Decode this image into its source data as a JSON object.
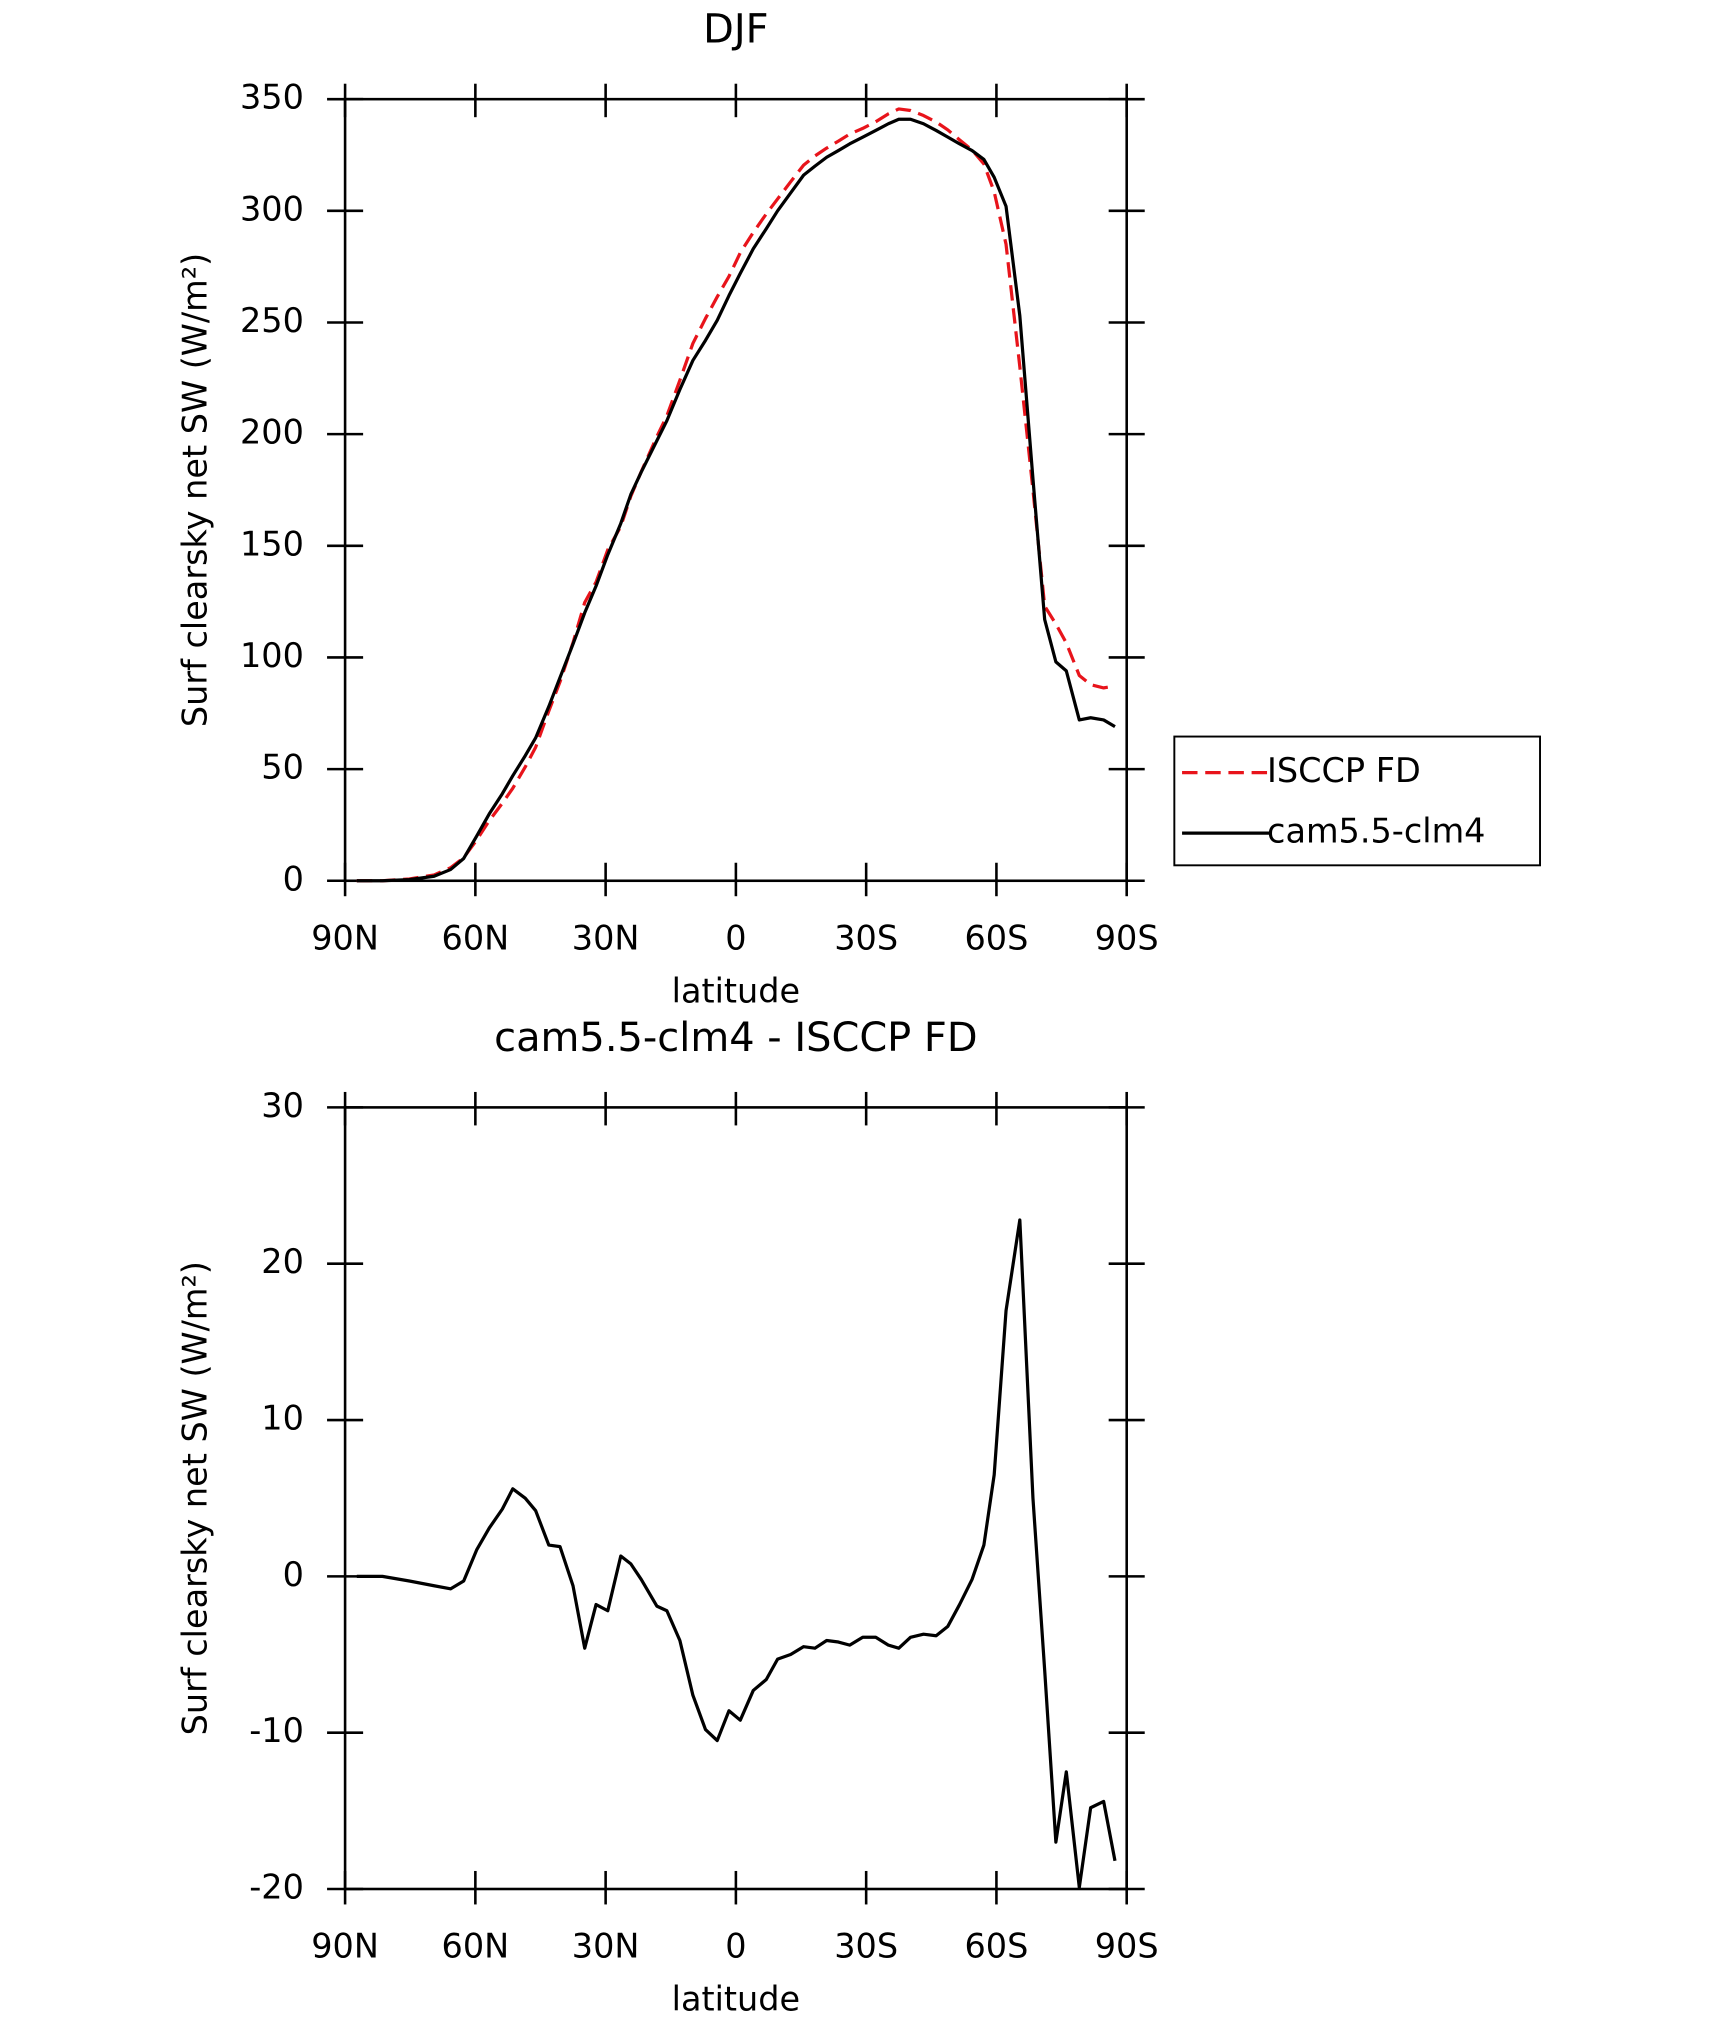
{
  "chart_data": [
    {
      "type": "line",
      "title": "DJF",
      "xlabel": "latitude",
      "ylabel": "Surf clearsky net SW (W/m²)",
      "x": [
        87.3,
        81.4,
        75.2,
        69.5,
        65.7,
        62.7,
        59.7,
        56.8,
        53.8,
        51.4,
        48.5,
        46.1,
        43.1,
        40.5,
        37.5,
        34.8,
        32.2,
        29.5,
        26.5,
        24.2,
        21.8,
        18.2,
        15.9,
        12.9,
        9.9,
        7.0,
        4.3,
        1.6,
        -1.0,
        -4.0,
        -7.0,
        -9.6,
        -12.6,
        -15.6,
        -18.2,
        -20.9,
        -23.6,
        -26.2,
        -29.2,
        -32.2,
        -35.1,
        -37.5,
        -40.2,
        -43.2,
        -46.1,
        -48.8,
        -51.5,
        -54.4,
        -57.1,
        -59.5,
        -62.2,
        -65.4,
        -68.4,
        -71.1,
        -73.7,
        -76.1,
        -79.1,
        -81.7,
        -84.7,
        -87.3
      ],
      "series": [
        {
          "name": "ISCCP FD",
          "color": "#e8141b",
          "dash": true,
          "values": [
            0,
            0,
            0.8,
            2.6,
            5.8,
            10.3,
            18.3,
            26.9,
            34.7,
            41.4,
            51,
            59.8,
            76,
            89.1,
            106.6,
            124.6,
            133.8,
            148.2,
            158.7,
            172.2,
            183.2,
            198.9,
            208.2,
            224.1,
            240.6,
            251.8,
            261.5,
            270.6,
            281.2,
            290.3,
            298.6,
            305.3,
            313,
            320.5,
            324.6,
            328.1,
            331.2,
            334.4,
            336.9,
            339.9,
            343.4,
            345.6,
            344.9,
            342.7,
            339.8,
            336.2,
            331.8,
            327.2,
            321,
            308.5,
            285,
            230.2,
            175,
            123,
            115,
            106.5,
            91.9,
            87.8,
            86.4,
            87.2
          ]
        },
        {
          "name": "cam5.5-clm4",
          "color": "#000000",
          "dash": false,
          "values": [
            0,
            0,
            0.5,
            2,
            5,
            10,
            20,
            30,
            39,
            47,
            56,
            64,
            78,
            91,
            106,
            120,
            132,
            146,
            160,
            173,
            183,
            197,
            206,
            220,
            233,
            242,
            251,
            262,
            272,
            283,
            292,
            300,
            308,
            316,
            320,
            324,
            327,
            330,
            333,
            336,
            339,
            341,
            341,
            339,
            336,
            333,
            330,
            327,
            323,
            315,
            302,
            253,
            180,
            117,
            98,
            94,
            72,
            73,
            72,
            69
          ]
        }
      ],
      "xlim": [
        90,
        -90
      ],
      "xticks": [
        {
          "value": 90,
          "label": "90N"
        },
        {
          "value": 60,
          "label": "60N"
        },
        {
          "value": 30,
          "label": "30N"
        },
        0,
        {
          "value": -30,
          "label": "30S"
        },
        {
          "value": -60,
          "label": "60S"
        },
        {
          "value": -90,
          "label": "90S"
        }
      ],
      "ylim": [
        0,
        350
      ],
      "yticks": [
        0,
        50,
        100,
        150,
        200,
        250,
        300,
        350
      ],
      "legend": "outside-right"
    },
    {
      "type": "line",
      "title": "cam5.5-clm4 - ISCCP FD",
      "xlabel": "latitude",
      "ylabel": "Surf clearsky net SW (W/m²)",
      "x": [
        87.3,
        81.4,
        75.2,
        69.5,
        65.7,
        62.7,
        59.7,
        56.8,
        53.8,
        51.4,
        48.5,
        46.1,
        43.1,
        40.5,
        37.5,
        34.8,
        32.2,
        29.5,
        26.5,
        24.2,
        21.8,
        18.2,
        15.9,
        12.9,
        9.9,
        7.0,
        4.3,
        1.6,
        -1.0,
        -4.0,
        -7.0,
        -9.6,
        -12.6,
        -15.6,
        -18.2,
        -20.9,
        -23.6,
        -26.2,
        -29.2,
        -32.2,
        -35.1,
        -37.5,
        -40.2,
        -43.2,
        -46.1,
        -48.8,
        -51.5,
        -54.4,
        -57.1,
        -59.5,
        -62.2,
        -65.4,
        -68.4,
        -71.1,
        -73.7,
        -76.1,
        -79.1,
        -81.7,
        -84.7,
        -87.3
      ],
      "series": [
        {
          "color": "#000000",
          "dash": false,
          "values": [
            0,
            0,
            -0.3,
            -0.6,
            -0.8,
            -0.3,
            1.7,
            3.1,
            4.3,
            5.6,
            5.0,
            4.2,
            2.0,
            1.9,
            -0.6,
            -4.6,
            -1.8,
            -2.2,
            1.3,
            0.8,
            -0.2,
            -1.9,
            -2.2,
            -4.1,
            -7.6,
            -9.8,
            -10.5,
            -8.6,
            -9.2,
            -7.3,
            -6.6,
            -5.3,
            -5.0,
            -4.5,
            -4.6,
            -4.1,
            -4.2,
            -4.4,
            -3.9,
            -3.9,
            -4.4,
            -4.6,
            -3.9,
            -3.7,
            -3.8,
            -3.2,
            -1.8,
            -0.2,
            2.0,
            6.5,
            17.0,
            22.8,
            5.0,
            -6.0,
            -17.0,
            -12.5,
            -19.9,
            -14.8,
            -14.4,
            -18.2
          ]
        }
      ],
      "xlim": [
        90,
        -90
      ],
      "xticks": [
        {
          "value": 90,
          "label": "90N"
        },
        {
          "value": 60,
          "label": "60N"
        },
        {
          "value": 30,
          "label": "30N"
        },
        0,
        {
          "value": -30,
          "label": "30S"
        },
        {
          "value": -60,
          "label": "60S"
        },
        {
          "value": -90,
          "label": "90S"
        }
      ],
      "ylim": [
        -20,
        30
      ],
      "yticks": [
        -20,
        -10,
        0,
        10,
        20,
        30
      ]
    }
  ]
}
